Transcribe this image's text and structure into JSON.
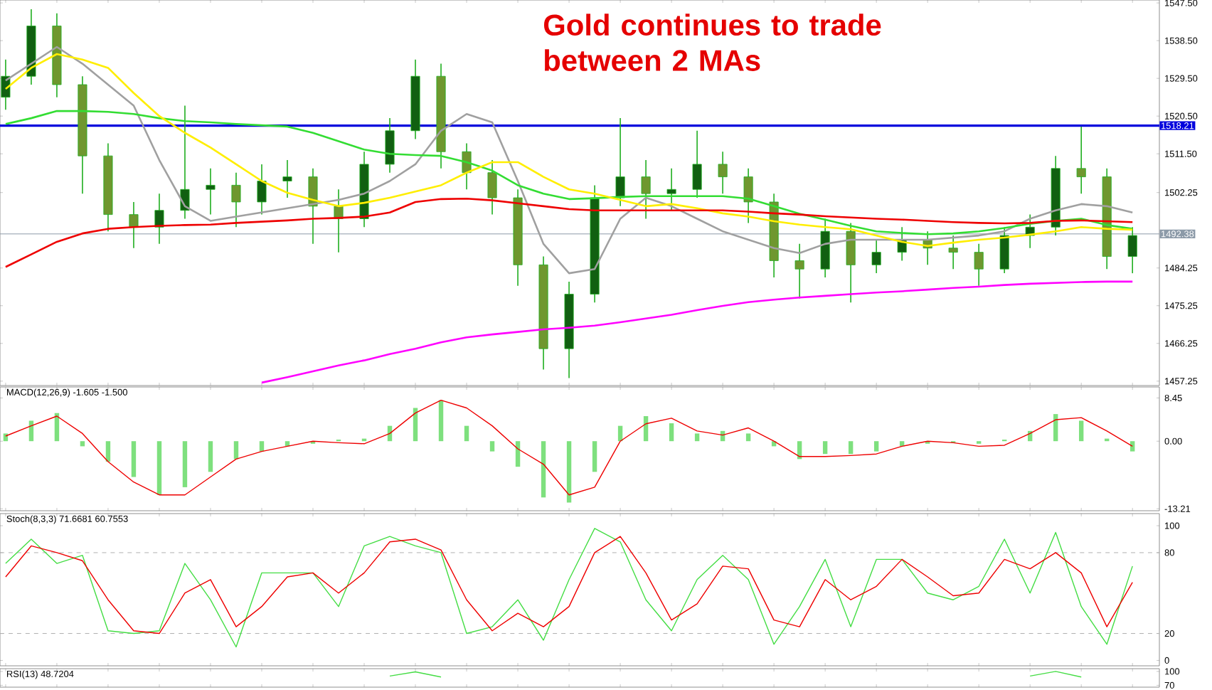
{
  "chart_data": [
    {
      "type": "candlestick",
      "title": "Gold continues to trade between 2 MAs",
      "tick_labels": "y",
      "categories": [
        null,
        null,
        null,
        null,
        null,
        null,
        null,
        null,
        null,
        null,
        null,
        null,
        null,
        null,
        null,
        null,
        null,
        null,
        null,
        null,
        null,
        null,
        null,
        null,
        null,
        null,
        null,
        null,
        null,
        null,
        null,
        null,
        null,
        null,
        null,
        null,
        null,
        null,
        null,
        null,
        null,
        null,
        null,
        null,
        null
      ],
      "ylim": [
        1456.2,
        1548.2
      ],
      "yticks": [
        {
          "value": 1457.25,
          "label": "1457.25"
        },
        {
          "value": 1466.25,
          "label": "1466.25"
        },
        {
          "value": 1475.25,
          "label": "1475.25"
        },
        {
          "value": 1484.25,
          "label": "1484.25"
        },
        {
          "value": 1502.25,
          "label": "1502.25"
        },
        {
          "value": 1511.5,
          "label": "1511.50"
        },
        {
          "value": 1520.5,
          "label": "1520.50"
        },
        {
          "value": 1529.5,
          "label": "1529.50"
        },
        {
          "value": 1538.5,
          "label": "1538.50"
        },
        {
          "value": 1547.5,
          "label": "1547.50"
        }
      ],
      "ref_lines": [
        {
          "axis": "y",
          "value": 1518.21,
          "label": "1518.21",
          "color": "#0000dd",
          "line_style": "solid"
        },
        {
          "axis": "y",
          "value": 1492.38,
          "label": "1492.38",
          "color": "#8c9aa8",
          "line_style": "solid"
        }
      ],
      "series": [
        {
          "type": "line",
          "color": "#ff00ff",
          "values": [
            null,
            null,
            null,
            null,
            null,
            null,
            null,
            null,
            null,
            null,
            1456.9,
            1458.2,
            1459.6,
            1461,
            1462.2,
            1463.7,
            1465,
            1466.5,
            1467.7,
            1468.4,
            1469,
            1469.6,
            1470,
            1470.5,
            1471.3,
            1472.2,
            1473.1,
            1474.2,
            1475.2,
            1476.1,
            1476.7,
            1477.2,
            1477.6,
            1478,
            1478.4,
            1478.7,
            1479.1,
            1479.5,
            1479.8,
            1480.2,
            1480.5,
            1480.7,
            1480.9,
            1481,
            1481
          ]
        },
        {
          "type": "line",
          "color": "#a0a0a0",
          "values": [
            1529,
            1533,
            1537,
            1533,
            1528,
            1523,
            1510,
            1499,
            1495.5,
            1496.5,
            1497.5,
            1498.5,
            1499.5,
            1500.5,
            1502,
            1505,
            1509,
            1517,
            1521,
            1519,
            1505,
            1490,
            1483,
            1484,
            1496,
            1501,
            1499,
            1496,
            1493,
            1491,
            1489,
            1487.8,
            1490,
            1491,
            1491,
            1491,
            1491,
            1491.5,
            1492,
            1493,
            1496,
            1498,
            1499.5,
            1499,
            1497.5
          ]
        },
        {
          "type": "line",
          "color": "#33dd33",
          "values": [
            1518.6,
            1520,
            1521.7,
            1521.7,
            1521.5,
            1521,
            1520,
            1519.3,
            1519,
            1518.6,
            1518.3,
            1518,
            1516.5,
            1514.5,
            1512.5,
            1511.5,
            1511.2,
            1511,
            1509.5,
            1507.5,
            1504,
            1502,
            1500.7,
            1500.9,
            1501.2,
            1501.4,
            1501.4,
            1501.4,
            1501.4,
            1500.8,
            1499,
            1497.2,
            1495.8,
            1494.3,
            1493,
            1492.6,
            1492.3,
            1492.5,
            1493,
            1493.8,
            1494.8,
            1495.5,
            1496,
            1494.5,
            1493.6
          ]
        },
        {
          "type": "line",
          "color": "#ffee00",
          "values": [
            1527,
            1532,
            1535.3,
            1534,
            1532,
            1526,
            1520.5,
            1516.5,
            1513,
            1509,
            1505,
            1502.2,
            1500.5,
            1499,
            1499.8,
            1501,
            1502.5,
            1504,
            1507,
            1509.5,
            1509.5,
            1506,
            1503,
            1502,
            1500.5,
            1499,
            1499.5,
            1498.5,
            1497.3,
            1496.5,
            1495.4,
            1494.6,
            1494,
            1493.5,
            1492,
            1490.5,
            1489.5,
            1490.3,
            1491,
            1491.5,
            1492.2,
            1493,
            1494,
            1493.6,
            1493.4
          ]
        },
        {
          "type": "line",
          "color": "#ee0000",
          "values": [
            1484.5,
            1487.5,
            1490.5,
            1492.5,
            1493.6,
            1494,
            1494.3,
            1494.5,
            1494.6,
            1495,
            1495.3,
            1495.6,
            1496,
            1496.2,
            1496.5,
            1497.5,
            1500,
            1500.7,
            1500.8,
            1500.4,
            1499.7,
            1499,
            1498.3,
            1498,
            1498,
            1498,
            1498,
            1498,
            1498,
            1497.7,
            1497.3,
            1497,
            1496.6,
            1496.3,
            1496,
            1495.8,
            1495.5,
            1495.2,
            1495,
            1494.9,
            1495,
            1495.5,
            1495.6,
            1495.4,
            1495.2
          ]
        },
        {
          "type": "candlestick",
          "color": "#1fae1f",
          "ohlc": [
            [
              1525,
              1534,
              1522,
              1530
            ],
            [
              1530,
              1546,
              1528,
              1542
            ],
            [
              1542,
              1545,
              1525,
              1528
            ],
            [
              1528,
              1530,
              1502,
              1511
            ],
            [
              1511,
              1514,
              1493,
              1497
            ],
            [
              1497,
              1500,
              1489,
              1494
            ],
            [
              1494,
              1502,
              1490,
              1498
            ],
            [
              1498,
              1523,
              1496,
              1503
            ],
            [
              1503,
              1508,
              1497,
              1504
            ],
            [
              1504,
              1507,
              1494,
              1500
            ],
            [
              1500,
              1509,
              1497,
              1505
            ],
            [
              1505,
              1510,
              1501,
              1506
            ],
            [
              1506,
              1508,
              1490,
              1499
            ],
            [
              1499,
              1503,
              1488,
              1496
            ],
            [
              1496,
              1512,
              1494,
              1509
            ],
            [
              1509,
              1520,
              1507,
              1517
            ],
            [
              1517,
              1534,
              1515,
              1530
            ],
            [
              1530,
              1533,
              1508,
              1512
            ],
            [
              1512,
              1514,
              1503,
              1507
            ],
            [
              1507,
              1510,
              1497,
              1501
            ],
            [
              1501,
              1503,
              1480,
              1485
            ],
            [
              1485,
              1487,
              1460,
              1465
            ],
            [
              1465,
              1481,
              1458,
              1478
            ],
            [
              1478,
              1504,
              1476,
              1501
            ],
            [
              1501,
              1520,
              1499,
              1506
            ],
            [
              1506,
              1510,
              1496,
              1502
            ],
            [
              1502,
              1508,
              1498,
              1503
            ],
            [
              1503,
              1517,
              1501,
              1509
            ],
            [
              1509,
              1512,
              1502,
              1506
            ],
            [
              1506,
              1508,
              1495,
              1500
            ],
            [
              1500,
              1502,
              1482,
              1486
            ],
            [
              1486,
              1490,
              1477,
              1484
            ],
            [
              1484,
              1496,
              1482,
              1493
            ],
            [
              1493,
              1495,
              1476,
              1485
            ],
            [
              1485,
              1491,
              1483,
              1488
            ],
            [
              1488,
              1494,
              1486,
              1491
            ],
            [
              1491,
              1493,
              1485,
              1489
            ],
            [
              1489,
              1492,
              1484,
              1488
            ],
            [
              1488,
              1490,
              1480,
              1484
            ],
            [
              1484,
              1494,
              1483,
              1492
            ],
            [
              1492,
              1497,
              1489,
              1494
            ],
            [
              1494,
              1511,
              1492,
              1508
            ],
            [
              1508,
              1518,
              1502,
              1506
            ],
            [
              1506,
              1508,
              1484,
              1487
            ],
            [
              1487,
              1494,
              1483,
              1492
            ]
          ]
        }
      ]
    },
    {
      "type": "bar",
      "title": "MACD(12,26,9) -1.605 -1.500",
      "tick_labels": "y",
      "categories": [
        null,
        null,
        null,
        null,
        null,
        null,
        null,
        null,
        null,
        null,
        null,
        null,
        null,
        null,
        null,
        null,
        null,
        null,
        null,
        null,
        null,
        null,
        null,
        null,
        null,
        null,
        null,
        null,
        null,
        null,
        null,
        null,
        null,
        null,
        null,
        null,
        null,
        null,
        null,
        null,
        null,
        null,
        null,
        null,
        null
      ],
      "ylim": [
        -13.6,
        10.6
      ],
      "yticks": [
        {
          "value": -13.21,
          "label": "-13.21"
        },
        {
          "value": 0,
          "label": "0.00"
        },
        {
          "value": 8.45,
          "label": "8.45"
        }
      ],
      "series": [
        {
          "type": "bar",
          "color": "#7ee07e",
          "values": [
            1.5,
            4,
            5.5,
            -1,
            -4,
            -7,
            -10.5,
            -9,
            -6,
            -3.5,
            -2,
            -1,
            -0.5,
            0.3,
            0.5,
            3,
            6.5,
            8,
            3,
            -2,
            -5,
            -11,
            -12,
            -6,
            3,
            4.9,
            3.5,
            1.5,
            2,
            1.5,
            -1,
            -3.5,
            -2.5,
            -2.5,
            -2,
            -1,
            -0.5,
            -0.3,
            -0.5,
            0.3,
            2,
            5.3,
            4,
            0.5,
            -2
          ]
        },
        {
          "type": "line",
          "color": "#ee0000",
          "values": [
            1,
            3,
            4.9,
            1.5,
            -4,
            -8,
            -10.5,
            -10.5,
            -7,
            -3.5,
            -2,
            -1,
            0,
            -0.3,
            -0.5,
            1.5,
            5.5,
            8,
            6.5,
            3,
            -1.5,
            -4.5,
            -10.5,
            -9,
            0,
            3.4,
            4.5,
            2,
            1.2,
            2.6,
            0,
            -3,
            -3,
            -2.8,
            -2.5,
            -1,
            0,
            -0.3,
            -1,
            -0.8,
            1.5,
            4.2,
            4.6,
            2,
            -1
          ]
        }
      ]
    },
    {
      "type": "line",
      "title": "Stoch(8,3,3) 71.6681 60.7553",
      "tick_labels": "y",
      "categories": [
        null,
        null,
        null,
        null,
        null,
        null,
        null,
        null,
        null,
        null,
        null,
        null,
        null,
        null,
        null,
        null,
        null,
        null,
        null,
        null,
        null,
        null,
        null,
        null,
        null,
        null,
        null,
        null,
        null,
        null,
        null,
        null,
        null,
        null,
        null,
        null,
        null,
        null,
        null,
        null,
        null,
        null,
        null,
        null,
        null
      ],
      "ylim": [
        -4,
        109
      ],
      "yticks": [
        0,
        20,
        80,
        100
      ],
      "ref_lines": [
        {
          "axis": "y",
          "value": 80,
          "color": "#b0b0b0",
          "line_style": "dashed"
        },
        {
          "axis": "y",
          "value": 20,
          "color": "#b0b0b0",
          "line_style": "dashed"
        }
      ],
      "series": [
        {
          "color": "#44dd44",
          "values": [
            72,
            90,
            72,
            78,
            22,
            20,
            22,
            72,
            45,
            10,
            65,
            65,
            65,
            40,
            85,
            92,
            85,
            80,
            20,
            25,
            45,
            15,
            60,
            98,
            88,
            45,
            22,
            60,
            78,
            60,
            12,
            40,
            75,
            25,
            75,
            75,
            50,
            45,
            55,
            90,
            50,
            95,
            40,
            12,
            70
          ]
        },
        {
          "color": "#ee0000",
          "values": [
            62,
            85,
            80,
            74,
            45,
            22,
            20,
            50,
            60,
            25,
            40,
            62,
            65,
            50,
            65,
            88,
            90,
            82,
            45,
            22,
            35,
            25,
            40,
            80,
            92,
            65,
            30,
            42,
            70,
            68,
            30,
            25,
            60,
            45,
            55,
            75,
            62,
            48,
            50,
            75,
            68,
            80,
            65,
            25,
            58
          ]
        }
      ]
    },
    {
      "type": "line",
      "title": "RSI(13) 48.7204",
      "tick_labels": "y",
      "categories": [
        null,
        null,
        null,
        null,
        null,
        null,
        null,
        null,
        null,
        null,
        null,
        null,
        null,
        null,
        null,
        null,
        null,
        null,
        null,
        null,
        null,
        null,
        null,
        null,
        null,
        null,
        null,
        null,
        null,
        null,
        null,
        null,
        null,
        null,
        null,
        null,
        null,
        null,
        null,
        null,
        null,
        null,
        null,
        null,
        null
      ],
      "ylim": [
        66,
        106
      ],
      "yticks": [
        70,
        100
      ],
      "series": [
        {
          "color": "#44dd44",
          "values": [
            null,
            null,
            null,
            null,
            null,
            null,
            null,
            null,
            null,
            null,
            null,
            null,
            null,
            null,
            null,
            90,
            99,
            88,
            null,
            null,
            null,
            null,
            null,
            null,
            null,
            null,
            null,
            null,
            null,
            null,
            null,
            null,
            null,
            null,
            null,
            null,
            null,
            null,
            null,
            null,
            90,
            100,
            88,
            null,
            null
          ]
        }
      ]
    }
  ]
}
